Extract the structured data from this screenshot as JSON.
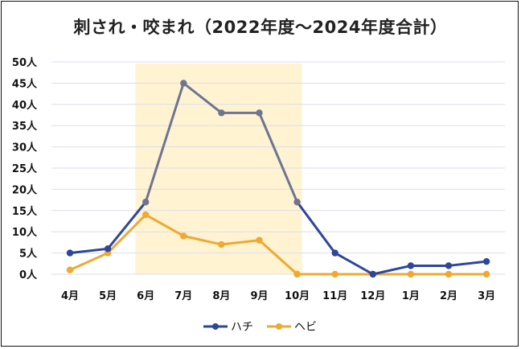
{
  "chart_data": {
    "type": "line",
    "title": "刺され・咬まれ（2022年度〜2024年度合計）",
    "xlabel": "",
    "ylabel": "",
    "categories": [
      "4月",
      "5月",
      "6月",
      "7月",
      "8月",
      "9月",
      "10月",
      "11月",
      "12月",
      "1月",
      "2月",
      "3月"
    ],
    "series": [
      {
        "name": "ハチ",
        "color": "#2E4699",
        "highlight_color": "#6E7591",
        "values": [
          5,
          6,
          17,
          45,
          38,
          38,
          17,
          5,
          0,
          2,
          2,
          3
        ]
      },
      {
        "name": "ヘビ",
        "color": "#F0A830",
        "values": [
          1,
          5,
          14,
          9,
          7,
          8,
          0,
          0,
          0,
          0,
          0,
          0
        ]
      }
    ],
    "ylim": [
      0,
      50
    ],
    "yticks": [
      "0人",
      "5人",
      "10人",
      "15人",
      "20人",
      "25人",
      "30人",
      "35人",
      "40人",
      "45人",
      "50人"
    ],
    "grid": true,
    "legend_position": "bottom",
    "highlight_region": {
      "from": "6月",
      "to": "10月",
      "color": "#FFF3D2"
    }
  }
}
